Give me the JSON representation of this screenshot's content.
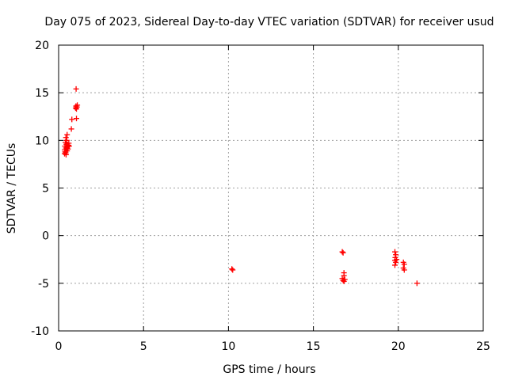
{
  "chart_data": {
    "type": "scatter",
    "title": "Day 075 of 2023, Sidereal Day-to-day VTEC variation (SDTVAR) for receiver usud",
    "xlabel": "GPS time / hours",
    "ylabel": "SDTVAR / TECUs",
    "xlim": [
      0,
      25
    ],
    "ylim": [
      -10,
      20
    ],
    "xticks": [
      0,
      5,
      10,
      15,
      20,
      25
    ],
    "yticks": [
      -10,
      -5,
      0,
      5,
      10,
      15,
      20
    ],
    "grid": true,
    "marker": "+",
    "color": "#ff0000",
    "series": [
      {
        "name": "SDTVAR",
        "points": [
          [
            0.35,
            8.6
          ],
          [
            0.38,
            8.8
          ],
          [
            0.4,
            9.0
          ],
          [
            0.42,
            9.2
          ],
          [
            0.37,
            9.4
          ],
          [
            0.45,
            9.6
          ],
          [
            0.4,
            9.8
          ],
          [
            0.48,
            10.0
          ],
          [
            0.43,
            10.3
          ],
          [
            0.5,
            10.6
          ],
          [
            0.42,
            8.7
          ],
          [
            0.5,
            8.9
          ],
          [
            0.55,
            9.1
          ],
          [
            0.52,
            9.3
          ],
          [
            0.58,
            9.5
          ],
          [
            0.6,
            9.7
          ],
          [
            0.36,
            9.0
          ],
          [
            0.47,
            9.2
          ],
          [
            0.62,
            9.4
          ],
          [
            0.44,
            8.5
          ],
          [
            0.75,
            11.2
          ],
          [
            0.78,
            12.2
          ],
          [
            1.05,
            12.3
          ],
          [
            1.0,
            13.4
          ],
          [
            1.02,
            13.6
          ],
          [
            1.08,
            13.5
          ],
          [
            1.1,
            13.7
          ],
          [
            1.05,
            13.3
          ],
          [
            1.03,
            15.4
          ],
          [
            10.2,
            -3.5
          ],
          [
            10.25,
            -3.6
          ],
          [
            16.7,
            -1.7
          ],
          [
            16.75,
            -1.8
          ],
          [
            16.8,
            -3.9
          ],
          [
            16.8,
            -4.2
          ],
          [
            16.7,
            -4.5
          ],
          [
            16.75,
            -4.7
          ],
          [
            16.8,
            -4.8
          ],
          [
            16.85,
            -4.6
          ],
          [
            19.8,
            -1.7
          ],
          [
            19.85,
            -2.0
          ],
          [
            19.82,
            -2.3
          ],
          [
            19.8,
            -2.6
          ],
          [
            19.85,
            -2.8
          ],
          [
            19.8,
            -3.1
          ],
          [
            19.9,
            -2.5
          ],
          [
            20.3,
            -2.8
          ],
          [
            20.35,
            -3.0
          ],
          [
            20.3,
            -3.4
          ],
          [
            20.35,
            -3.6
          ],
          [
            21.1,
            -5.0
          ]
        ]
      }
    ]
  }
}
